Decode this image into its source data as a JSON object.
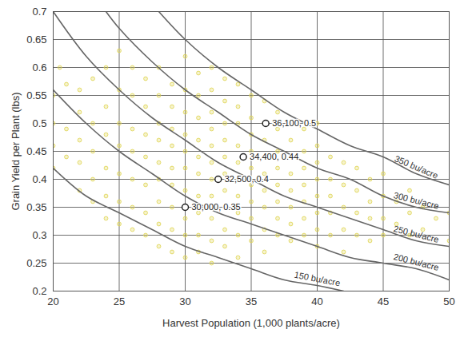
{
  "chart_data": {
    "type": "scatter",
    "x_label": "Harvest Population (1,000 plants/acre)",
    "y_label": "Grain Yield per Plant (lbs)",
    "xlim": [
      20,
      50
    ],
    "xticks": [
      20,
      25,
      30,
      35,
      40,
      45,
      50
    ],
    "ylim": [
      0.2,
      0.7
    ],
    "yticks": [
      0.2,
      0.25,
      0.3,
      0.35,
      0.4,
      0.45,
      0.5,
      0.55,
      0.6,
      0.65,
      0.7
    ],
    "grid": true,
    "series": [
      {
        "type": "scatter",
        "marker": "circle",
        "color": "#e0d65a",
        "x": [
          20,
          20,
          20,
          20,
          20.5,
          21,
          21,
          21,
          22,
          22,
          22,
          22,
          22,
          23,
          23,
          23,
          23,
          23,
          24,
          24,
          24,
          24,
          24,
          24,
          25,
          25,
          25,
          25,
          25,
          25,
          25,
          26,
          26,
          26,
          26,
          26,
          26,
          26,
          27,
          27,
          27,
          27,
          27,
          27,
          27,
          28,
          28,
          28,
          28,
          28,
          28,
          28,
          28,
          28,
          29,
          29,
          29,
          29,
          29,
          29,
          29,
          29,
          29,
          30,
          30,
          30,
          30,
          30,
          30,
          30,
          30,
          30,
          30,
          31,
          31,
          31,
          31,
          31,
          31,
          31,
          31,
          31,
          31,
          32,
          32,
          32,
          32,
          32,
          32,
          32,
          32,
          32,
          32,
          32,
          33,
          33,
          33,
          33,
          33,
          33,
          33,
          33,
          33,
          33,
          34,
          34,
          34,
          34,
          34,
          34,
          34,
          34,
          34,
          34,
          35,
          35,
          35,
          35,
          35,
          35,
          35,
          35,
          35,
          36,
          36,
          36,
          36,
          36,
          36,
          36,
          36,
          36,
          37,
          37,
          37,
          37,
          37,
          37,
          37,
          37,
          38,
          38,
          38,
          38,
          38,
          38,
          38,
          38,
          39,
          39,
          39,
          39,
          39,
          39,
          39,
          40,
          40,
          40,
          40,
          40,
          40,
          40,
          40,
          41,
          41,
          41,
          41,
          41,
          42,
          42,
          42,
          42,
          42,
          43,
          43,
          43,
          43,
          44,
          44,
          44,
          44,
          45,
          45,
          45,
          45,
          46,
          46,
          47,
          47,
          47,
          48,
          48,
          49,
          50,
          50
        ],
        "values": [
          0.46,
          0.42,
          0.5,
          0.55,
          0.6,
          0.57,
          0.49,
          0.44,
          0.56,
          0.52,
          0.47,
          0.43,
          0.38,
          0.58,
          0.5,
          0.45,
          0.4,
          0.36,
          0.6,
          0.53,
          0.48,
          0.42,
          0.37,
          0.33,
          0.63,
          0.56,
          0.5,
          0.46,
          0.41,
          0.36,
          0.32,
          0.6,
          0.55,
          0.49,
          0.45,
          0.4,
          0.35,
          0.31,
          0.58,
          0.53,
          0.48,
          0.44,
          0.39,
          0.34,
          0.3,
          0.6,
          0.55,
          0.5,
          0.47,
          0.43,
          0.4,
          0.36,
          0.32,
          0.28,
          0.57,
          0.53,
          0.49,
          0.46,
          0.42,
          0.39,
          0.35,
          0.31,
          0.27,
          0.62,
          0.56,
          0.52,
          0.48,
          0.45,
          0.42,
          0.38,
          0.33,
          0.3,
          0.26,
          0.59,
          0.55,
          0.51,
          0.47,
          0.44,
          0.41,
          0.37,
          0.34,
          0.3,
          0.27,
          0.6,
          0.56,
          0.52,
          0.49,
          0.46,
          0.43,
          0.4,
          0.37,
          0.33,
          0.29,
          0.25,
          0.58,
          0.54,
          0.5,
          0.47,
          0.44,
          0.41,
          0.38,
          0.35,
          0.31,
          0.28,
          0.57,
          0.53,
          0.5,
          0.46,
          0.43,
          0.4,
          0.37,
          0.34,
          0.3,
          0.26,
          0.55,
          0.51,
          0.48,
          0.45,
          0.42,
          0.39,
          0.36,
          0.33,
          0.29,
          0.54,
          0.5,
          0.47,
          0.44,
          0.41,
          0.38,
          0.35,
          0.31,
          0.27,
          0.52,
          0.49,
          0.45,
          0.42,
          0.39,
          0.36,
          0.33,
          0.3,
          0.5,
          0.47,
          0.44,
          0.41,
          0.38,
          0.35,
          0.32,
          0.29,
          0.49,
          0.45,
          0.42,
          0.39,
          0.36,
          0.33,
          0.3,
          0.5,
          0.46,
          0.43,
          0.4,
          0.37,
          0.34,
          0.31,
          0.28,
          0.44,
          0.4,
          0.37,
          0.34,
          0.3,
          0.43,
          0.39,
          0.35,
          0.31,
          0.27,
          0.42,
          0.38,
          0.34,
          0.3,
          0.4,
          0.36,
          0.33,
          0.29,
          0.41,
          0.37,
          0.33,
          0.3,
          0.36,
          0.32,
          0.38,
          0.34,
          0.3,
          0.35,
          0.31,
          0.33,
          0.34,
          0.29
        ]
      },
      {
        "name": "150 bu/acre",
        "type": "line",
        "line_style": "solid",
        "color": "#666666",
        "x": [
          20,
          22.5,
          25,
          27.5,
          30,
          32.5,
          35,
          37.5,
          40,
          42
        ],
        "values": [
          0.42,
          0.37,
          0.34,
          0.31,
          0.28,
          0.26,
          0.24,
          0.22,
          0.21,
          0.2
        ]
      },
      {
        "name": "200 bu/acre",
        "type": "line",
        "line_style": "solid",
        "color": "#666666",
        "x": [
          20,
          22.5,
          25,
          27.5,
          30,
          32.5,
          35,
          37.5,
          40,
          42.5,
          45,
          47.5,
          50
        ],
        "values": [
          0.56,
          0.5,
          0.45,
          0.41,
          0.37,
          0.34,
          0.32,
          0.3,
          0.28,
          0.26,
          0.25,
          0.24,
          0.22
        ]
      },
      {
        "name": "250 bu/acre",
        "type": "line",
        "line_style": "solid",
        "color": "#666666",
        "x": [
          20,
          22.5,
          25,
          27.5,
          30,
          32.5,
          35,
          37.5,
          40,
          42.5,
          45,
          47.5,
          50
        ],
        "values": [
          0.7,
          0.62,
          0.56,
          0.51,
          0.47,
          0.43,
          0.4,
          0.37,
          0.35,
          0.33,
          0.31,
          0.29,
          0.28
        ]
      },
      {
        "name": "300 bu/acre",
        "type": "line",
        "line_style": "solid",
        "color": "#666666",
        "x": [
          24,
          25,
          27.5,
          30,
          32.5,
          35,
          37.5,
          40,
          42.5,
          45,
          47.5,
          50
        ],
        "values": [
          0.7,
          0.67,
          0.61,
          0.56,
          0.52,
          0.48,
          0.45,
          0.42,
          0.4,
          0.37,
          0.35,
          0.34
        ]
      },
      {
        "name": "350 bu/acre",
        "type": "line",
        "line_style": "solid",
        "color": "#666666",
        "x": [
          28,
          30,
          32.5,
          35,
          37.5,
          40,
          42.5,
          45,
          47.5,
          50
        ],
        "values": [
          0.7,
          0.65,
          0.6,
          0.56,
          0.52,
          0.49,
          0.46,
          0.44,
          0.41,
          0.39
        ]
      }
    ],
    "annotations": [
      {
        "x": 30,
        "y": 0.35,
        "text": "30,000, 0.35"
      },
      {
        "x": 32.5,
        "y": 0.4,
        "text": "32,500, 0.4"
      },
      {
        "x": 34.4,
        "y": 0.44,
        "text": "34,400, 0.44"
      },
      {
        "x": 36.1,
        "y": 0.5,
        "text": "36,100, 0.5"
      }
    ]
  }
}
